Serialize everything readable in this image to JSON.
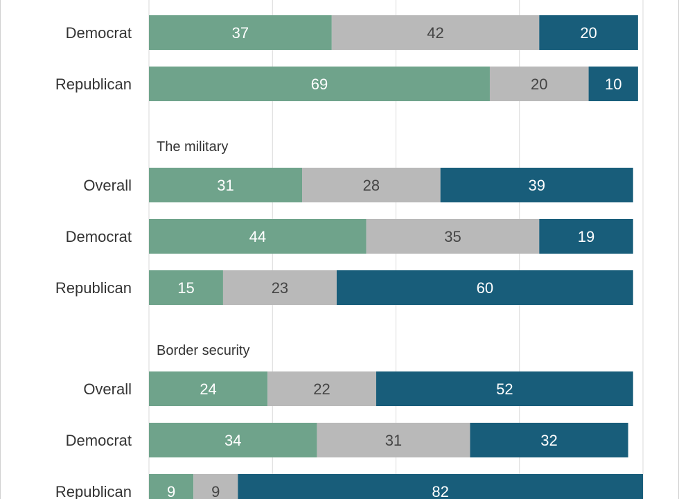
{
  "colors": {
    "green": "#6fa38b",
    "gray": "#b9b9b9",
    "blue": "#185d7a",
    "label_light": "#ffffff",
    "label_dark": "#444444"
  },
  "chart_data": {
    "type": "bar",
    "orientation": "horizontal",
    "stacked": true,
    "xlim": [
      0,
      100
    ],
    "grid": true,
    "groups": [
      {
        "title": "",
        "rows": [
          {
            "label": "Democrat",
            "values": [
              37,
              42,
              20
            ]
          },
          {
            "label": "Republican",
            "values": [
              69,
              20,
              10
            ]
          }
        ]
      },
      {
        "title": "The military",
        "rows": [
          {
            "label": "Overall",
            "values": [
              31,
              28,
              39
            ]
          },
          {
            "label": "Democrat",
            "values": [
              44,
              35,
              19
            ]
          },
          {
            "label": "Republican",
            "values": [
              15,
              23,
              60
            ]
          }
        ]
      },
      {
        "title": "Border security",
        "rows": [
          {
            "label": "Overall",
            "values": [
              24,
              22,
              52
            ]
          },
          {
            "label": "Democrat",
            "values": [
              34,
              31,
              32
            ]
          },
          {
            "label": "Republican",
            "values": [
              9,
              9,
              82
            ]
          }
        ]
      }
    ]
  }
}
